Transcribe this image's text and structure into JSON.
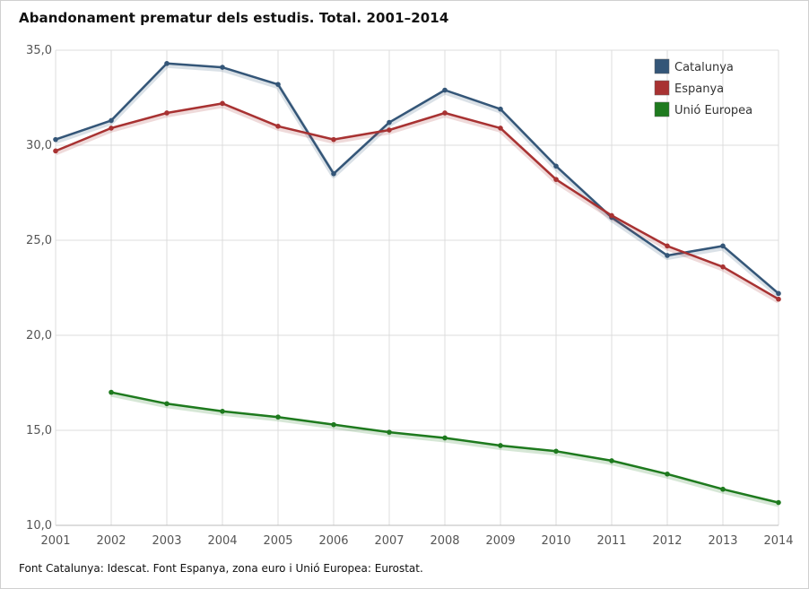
{
  "chart_data": {
    "type": "line",
    "title": "Abandonament prematur dels estudis. Total. 2001–2014",
    "xlabel": "",
    "ylabel": "",
    "x": [
      "2001",
      "2002",
      "2003",
      "2004",
      "2005",
      "2006",
      "2007",
      "2008",
      "2009",
      "2010",
      "2011",
      "2012",
      "2013",
      "2014"
    ],
    "ylim": [
      10,
      35
    ],
    "yticks": [
      "10,0",
      "15,0",
      "20,0",
      "25,0",
      "30,0",
      "35,0"
    ],
    "grid": true,
    "legend": "top-right",
    "series": [
      {
        "name": "Catalunya",
        "color": "#345678",
        "values": [
          30.3,
          31.3,
          34.3,
          34.1,
          33.2,
          28.5,
          31.2,
          32.9,
          31.9,
          28.9,
          26.2,
          24.2,
          24.7,
          22.2
        ]
      },
      {
        "name": "Espanya",
        "color": "#a83232",
        "values": [
          29.7,
          30.9,
          31.7,
          32.2,
          31.0,
          30.3,
          30.8,
          31.7,
          30.9,
          28.2,
          26.3,
          24.7,
          23.6,
          21.9
        ]
      },
      {
        "name": "Unió Europea",
        "color": "#1e7a1e",
        "values": [
          null,
          17.0,
          16.4,
          16.0,
          15.7,
          15.3,
          14.9,
          14.6,
          14.2,
          13.9,
          13.4,
          12.7,
          11.9,
          11.2
        ]
      }
    ]
  },
  "source_note": "Font Catalunya: Idescat. Font Espanya, zona euro i Unió Europea: Eurostat."
}
